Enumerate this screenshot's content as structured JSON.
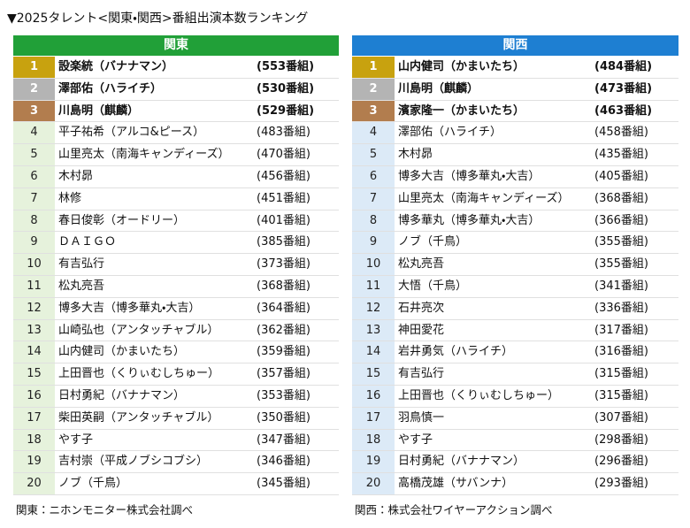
{
  "title": "▼2025タレント<関東・関西>番組出演本数ランキング",
  "tables": [
    {
      "header": "関東",
      "source": "関東：ニホンモニター株式会社調べ",
      "rows": [
        [
          "1",
          "設楽統（バナナマン）",
          "(553番組)"
        ],
        [
          "2",
          "澤部佑（ハライチ）",
          "(530番組)"
        ],
        [
          "3",
          "川島明（麒麟）",
          "(529番組)"
        ],
        [
          "4",
          "平子祐希（アルコ&ピース）",
          "(483番組)"
        ],
        [
          "5",
          "山里亮太（南海キャンディーズ）",
          "(470番組)"
        ],
        [
          "6",
          "木村昴",
          "(456番組)"
        ],
        [
          "7",
          "林修",
          "(451番組)"
        ],
        [
          "8",
          "春日俊彰（オードリー）",
          "(401番組)"
        ],
        [
          "9",
          "ＤＡＩＧＯ",
          "(385番組)"
        ],
        [
          "10",
          "有吉弘行",
          "(373番組)"
        ],
        [
          "11",
          "松丸亮吾",
          "(368番組)"
        ],
        [
          "12",
          "博多大吉（博多華丸・大吉）",
          "(364番組)"
        ],
        [
          "13",
          "山崎弘也（アンタッチャブル）",
          "(362番組)"
        ],
        [
          "14",
          "山内健司（かまいたち）",
          "(359番組)"
        ],
        [
          "15",
          "上田晋也（くりぃむしちゅー）",
          "(357番組)"
        ],
        [
          "16",
          "日村勇紀（バナナマン）",
          "(353番組)"
        ],
        [
          "17",
          "柴田英嗣（アンタッチャブル）",
          "(350番組)"
        ],
        [
          "18",
          "やす子",
          "(347番組)"
        ],
        [
          "19",
          "吉村崇（平成ノブシコブシ）",
          "(346番組)"
        ],
        [
          "20",
          "ノブ（千鳥）",
          "(345番組)"
        ]
      ]
    },
    {
      "header": "関西",
      "source": "関西：株式会社ワイヤーアクション調べ",
      "rows": [
        [
          "1",
          "山内健司（かまいたち）",
          "(484番組)"
        ],
        [
          "2",
          "川島明（麒麟）",
          "(473番組)"
        ],
        [
          "3",
          "濱家隆一（かまいたち）",
          "(463番組)"
        ],
        [
          "4",
          "澤部佑（ハライチ）",
          "(458番組)"
        ],
        [
          "5",
          "木村昴",
          "(435番組)"
        ],
        [
          "6",
          "博多大吉（博多華丸・大吉）",
          "(405番組)"
        ],
        [
          "7",
          "山里亮太（南海キャンディーズ）",
          "(368番組)"
        ],
        [
          "8",
          "博多華丸（博多華丸・大吉）",
          "(366番組)"
        ],
        [
          "9",
          "ノブ（千鳥）",
          "(355番組)"
        ],
        [
          "10",
          "松丸亮吾",
          "(355番組)"
        ],
        [
          "11",
          "大悟（千鳥）",
          "(341番組)"
        ],
        [
          "12",
          "石井亮次",
          "(336番組)"
        ],
        [
          "13",
          "神田愛花",
          "(317番組)"
        ],
        [
          "14",
          "岩井勇気（ハライチ）",
          "(316番組)"
        ],
        [
          "15",
          "有吉弘行",
          "(315番組)"
        ],
        [
          "16",
          "上田晋也（くりぃむしちゅー）",
          "(315番組)"
        ],
        [
          "17",
          "羽鳥慎一",
          "(307番組)"
        ],
        [
          "18",
          "やす子",
          "(298番組)"
        ],
        [
          "19",
          "日村勇紀（バナナマン）",
          "(296番組)"
        ],
        [
          "20",
          "高橋茂雄（サバンナ）",
          "(293番組)"
        ]
      ]
    }
  ]
}
